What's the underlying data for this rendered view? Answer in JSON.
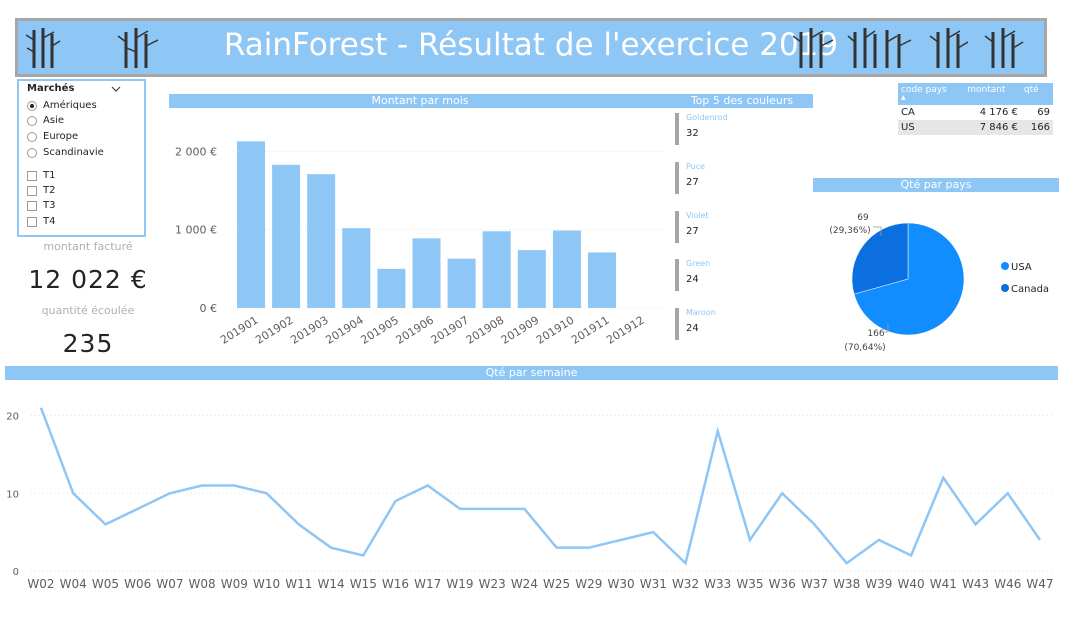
{
  "banner": {
    "title": "RainForest - Résultat de l'exercice 2019"
  },
  "slicer": {
    "title": "Marchés",
    "markets": [
      {
        "label": "Amériques",
        "selected": true
      },
      {
        "label": "Asie",
        "selected": false
      },
      {
        "label": "Europe",
        "selected": false
      },
      {
        "label": "Scandinavie",
        "selected": false
      }
    ],
    "quarters": [
      "T1",
      "T2",
      "T3",
      "T4"
    ]
  },
  "kpi": {
    "amount_label": "montant facturé",
    "amount_value": "12 022 €",
    "qty_label": "quantité écoulée",
    "qty_value": "235"
  },
  "top5": {
    "title": "Top 5 des couleurs",
    "items": [
      {
        "name": "Goldenrod",
        "value": "32"
      },
      {
        "name": "Puce",
        "value": "27"
      },
      {
        "name": "Violet",
        "value": "27"
      },
      {
        "name": "Green",
        "value": "24"
      },
      {
        "name": "Maroon",
        "value": "24"
      }
    ]
  },
  "country_table": {
    "headers": [
      "code pays",
      "montant",
      "qté"
    ],
    "rows": [
      [
        "CA",
        "4 176 €",
        "69"
      ],
      [
        "US",
        "7 846 €",
        "166"
      ]
    ]
  },
  "colors": {
    "accent": "#8ec6f5",
    "pie_usa": "#118dff",
    "pie_canada": "#0b6fe0",
    "line": "#8ec6f5"
  },
  "chart_data": [
    {
      "type": "bar",
      "title": "Montant par mois",
      "categories": [
        "201901",
        "201902",
        "201903",
        "201904",
        "201905",
        "201906",
        "201907",
        "201908",
        "201909",
        "201910",
        "201911",
        "201912"
      ],
      "values": [
        2130,
        1830,
        1710,
        1020,
        500,
        890,
        630,
        980,
        740,
        990,
        710,
        null
      ],
      "yticks": [
        "0 €",
        "1 000 €",
        "2 000 €"
      ],
      "ylim": [
        0,
        2300
      ]
    },
    {
      "type": "pie",
      "title": "Qté par pays",
      "slices": [
        {
          "label": "USA",
          "value": 166,
          "pct": "(70,64%)"
        },
        {
          "label": "Canada",
          "value": 69,
          "pct": "(29,36%)"
        }
      ]
    },
    {
      "type": "line",
      "title": "Qté par semaine",
      "categories": [
        "W02",
        "W04",
        "W05",
        "W06",
        "W07",
        "W08",
        "W09",
        "W10",
        "W11",
        "W14",
        "W15",
        "W16",
        "W17",
        "W19",
        "W23",
        "W24",
        "W25",
        "W29",
        "W30",
        "W31",
        "W32",
        "W33",
        "W35",
        "W36",
        "W37",
        "W38",
        "W39",
        "W40",
        "W41",
        "W43",
        "W46",
        "W47"
      ],
      "values": [
        21,
        10,
        6,
        8,
        10,
        11,
        11,
        10,
        6,
        3,
        2,
        9,
        11,
        8,
        8,
        8,
        3,
        3,
        4,
        5,
        1,
        18,
        4,
        10,
        6,
        1,
        4,
        2,
        12,
        6,
        10,
        4
      ],
      "yticks": [
        "0",
        "10",
        "20"
      ],
      "ylim": [
        0,
        22
      ]
    }
  ]
}
